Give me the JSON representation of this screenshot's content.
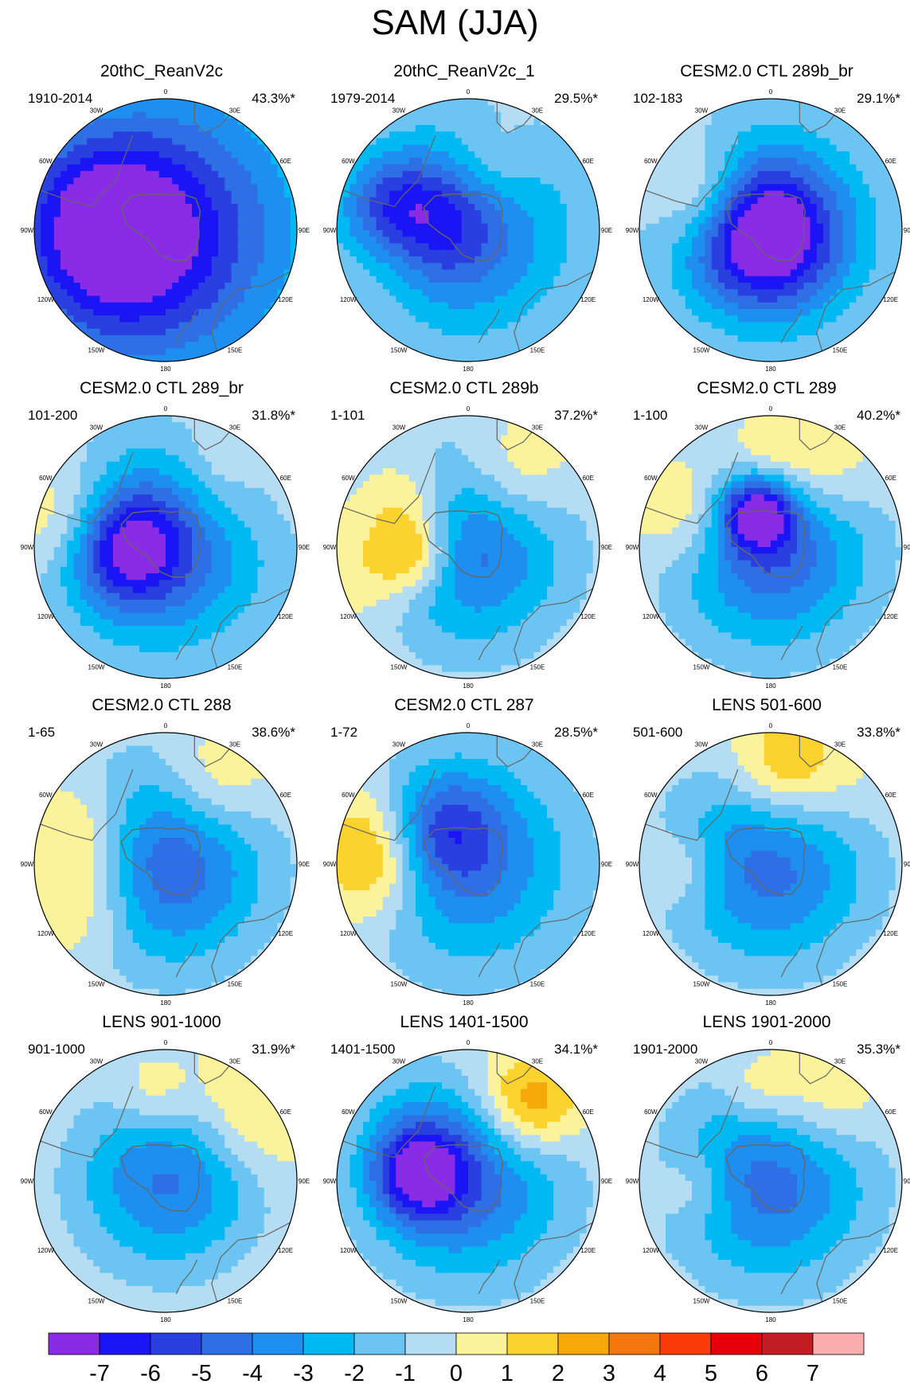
{
  "figure": {
    "title": "SAM (JJA)"
  },
  "panels": [
    {
      "title": "20thC_ReanV2c",
      "period": "1910-2014",
      "percent": "43.3%*"
    },
    {
      "title": "20thC_ReanV2c_1",
      "period": "1979-2014",
      "percent": "29.5%*"
    },
    {
      "title": "CESM2.0 CTL 289b_br",
      "period": "102-183",
      "percent": "29.1%*"
    },
    {
      "title": "CESM2.0 CTL 289_br",
      "period": "101-200",
      "percent": "31.8%*"
    },
    {
      "title": "CESM2.0 CTL 289b",
      "period": "1-101",
      "percent": "37.2%*"
    },
    {
      "title": "CESM2.0 CTL 289",
      "period": "1-100",
      "percent": "40.2%*"
    },
    {
      "title": "CESM2.0 CTL 288",
      "period": "1-65",
      "percent": "38.6%*"
    },
    {
      "title": "CESM2.0 CTL 287",
      "period": "1-72",
      "percent": "28.5%*"
    },
    {
      "title": "LENS 501-600",
      "period": "501-600",
      "percent": "33.8%*"
    },
    {
      "title": "LENS 901-1000",
      "period": "901-1000",
      "percent": "31.9%*"
    },
    {
      "title": "LENS 1401-1500",
      "period": "1401-1500",
      "percent": "34.1%*"
    },
    {
      "title": "LENS 1901-2000",
      "period": "1901-2000",
      "percent": "35.3%*"
    }
  ],
  "longitude_labels": [
    "0",
    "30E",
    "60E",
    "90E",
    "120E",
    "150E",
    "180",
    "150W",
    "120W",
    "90W",
    "60W",
    "30W"
  ],
  "colorbar": {
    "ticks": [
      "-7",
      "-6",
      "-5",
      "-4",
      "-3",
      "-2",
      "-1",
      "0",
      "1",
      "2",
      "3",
      "4",
      "5",
      "6",
      "7"
    ],
    "colors": [
      "#8a2be6",
      "#1b14f5",
      "#2a3fe0",
      "#2f6fe6",
      "#1e8ff0",
      "#00b9f3",
      "#6cc4f2",
      "#b4dcf2",
      "#fbf39b",
      "#fbd22e",
      "#f6a80a",
      "#f5780e",
      "#fb3a0a",
      "#e5000b",
      "#c41e24",
      "#fcaeae"
    ],
    "contour_interval": 1,
    "range": [
      -7,
      7
    ]
  },
  "panel_fields": [
    [
      [
        0,
        0,
        0,
        -5,
        0.9
      ],
      [
        -10,
        -0.4,
        -0.15,
        -4.5,
        0.55
      ],
      [
        -20,
        -0.55,
        -0.05,
        -1.5,
        0.3
      ],
      [
        160,
        0.62,
        0.18,
        1,
        0.15
      ]
    ],
    [
      [
        0,
        0,
        0,
        -4,
        0.65
      ],
      [
        -30,
        -0.35,
        -0.2,
        -4.5,
        0.35
      ],
      [
        -90,
        -0.2,
        -0.65,
        -1.5,
        0.25
      ],
      [
        180,
        0.53,
        0.2,
        2.5,
        0.3
      ],
      [
        60,
        0.55,
        0.1,
        1.5,
        0.25
      ]
    ],
    [
      [
        0,
        0,
        0,
        -4.5,
        0.6
      ],
      [
        0,
        -0.05,
        -0.05,
        -5,
        0.35
      ],
      [
        -60,
        -0.5,
        -0.05,
        -1.5,
        0.25
      ],
      [
        120,
        0.55,
        0.12,
        2.5,
        0.25
      ],
      [
        150,
        0.55,
        0.12,
        2,
        0.25
      ]
    ],
    [
      [
        0,
        0,
        0,
        -4.5,
        0.6
      ],
      [
        -20,
        -0.3,
        -0.1,
        -5,
        0.3
      ],
      [
        -120,
        -0.75,
        0.2,
        2,
        0.3
      ],
      [
        155,
        0.72,
        0.12,
        2.5,
        0.3
      ],
      [
        30,
        0.85,
        0.1,
        -1,
        0.2
      ]
    ],
    [
      [
        0,
        0,
        0,
        -4.5,
        0.55
      ],
      [
        -110,
        -0.65,
        0.15,
        2,
        0.3
      ],
      [
        130,
        0.55,
        0.15,
        2.5,
        0.25
      ],
      [
        175,
        0.7,
        0.2,
        2,
        0.3
      ],
      [
        160,
        0.35,
        0.2,
        3,
        0.2
      ]
    ],
    [
      [
        0,
        0,
        0,
        -5,
        0.55
      ],
      [
        80,
        0.25,
        0.15,
        -6,
        0.2
      ],
      [
        -110,
        -0.65,
        0.15,
        2,
        0.3
      ],
      [
        145,
        0.65,
        0.12,
        2.5,
        0.3
      ],
      [
        80,
        0.65,
        0.15,
        2,
        0.25
      ]
    ],
    [
      [
        0,
        0,
        0,
        -5,
        0.55
      ],
      [
        -110,
        -0.7,
        0.15,
        2,
        0.3
      ],
      [
        150,
        0.65,
        0.15,
        2.5,
        0.3
      ],
      [
        -170,
        0.65,
        0.2,
        2,
        0.3
      ]
    ],
    [
      [
        0,
        0,
        0,
        -4,
        0.6
      ],
      [
        -80,
        -0.3,
        -0.15,
        -3,
        0.3
      ],
      [
        170,
        0.68,
        0.18,
        2.5,
        0.3
      ],
      [
        150,
        0.75,
        0.15,
        2,
        0.3
      ]
    ],
    [
      [
        0,
        0,
        0,
        -4.5,
        0.55
      ],
      [
        -100,
        -0.7,
        0.15,
        2,
        0.35
      ],
      [
        80,
        0.75,
        0.1,
        1.5,
        0.25
      ],
      [
        170,
        0.65,
        0.15,
        1.5,
        0.2
      ]
    ],
    [
      [
        0,
        0,
        0,
        -4,
        0.5
      ],
      [
        10,
        0.45,
        0.15,
        -1,
        0.35
      ],
      [
        -130,
        -0.7,
        0.15,
        2.5,
        0.35
      ],
      [
        90,
        0.65,
        0.1,
        1.5,
        0.2
      ]
    ],
    [
      [
        0,
        0,
        0,
        -4.5,
        0.55
      ],
      [
        -30,
        -0.35,
        -0.15,
        -5,
        0.25
      ],
      [
        -110,
        -0.72,
        0.15,
        2,
        0.3
      ],
      [
        40,
        0.75,
        0.1,
        2,
        0.25
      ],
      [
        120,
        0.55,
        0.15,
        -1,
        0.3
      ]
    ],
    [
      [
        0,
        0,
        0,
        -4.5,
        0.55
      ],
      [
        -110,
        -0.7,
        0.15,
        2,
        0.3
      ],
      [
        90,
        0.7,
        0.1,
        1.5,
        0.2
      ],
      [
        170,
        0.55,
        0.15,
        1.5,
        0.2
      ]
    ]
  ]
}
